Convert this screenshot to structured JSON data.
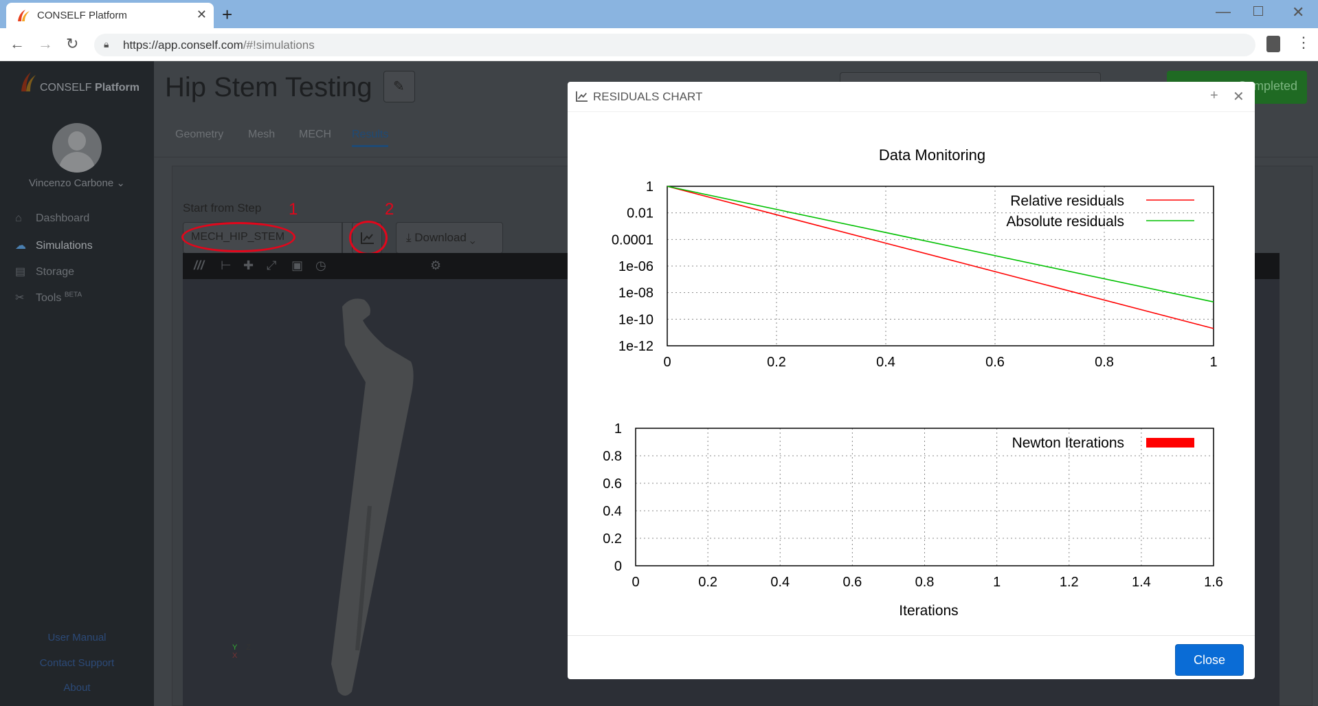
{
  "browser": {
    "tab_title": "CONSELF Platform",
    "url_host": "https://app.conself.com",
    "url_path": "/#!simulations"
  },
  "sidebar": {
    "logo_brand": "CONSELF",
    "logo_product": "Platform",
    "user_name": "Vincenzo Carbone ⌄",
    "items": [
      {
        "label": "Dashboard",
        "icon": "home-icon"
      },
      {
        "label": "Simulations",
        "icon": "cloud-icon"
      },
      {
        "label": "Storage",
        "icon": "storage-icon"
      },
      {
        "label": "Tools",
        "badge": "BETA",
        "icon": "tools-icon"
      }
    ],
    "footer_links": [
      "User Manual",
      "Contact Support",
      "About"
    ]
  },
  "main": {
    "title": "Hip Stem Testing",
    "status_button": "Completed",
    "tabs": [
      "Geometry",
      "Mesh",
      "MECH",
      "Results"
    ],
    "active_tab": "Results",
    "step_label": "Start from Step",
    "step_value": "MECH_HIP_STEM",
    "download_label": "Download",
    "annotations": [
      "1",
      "2"
    ],
    "axis_labels": {
      "x": "X",
      "y": "Y",
      "z": "Z"
    }
  },
  "modal": {
    "title": "RESIDUALS CHART",
    "close_label": "Close"
  },
  "chart_data": [
    {
      "type": "line",
      "title": "Data Monitoring",
      "xlabel": "",
      "ylabel": "",
      "y_scale": "log",
      "xlim": [
        0,
        1
      ],
      "ylim": [
        1e-12,
        1
      ],
      "x_ticks": [
        "0",
        "0.2",
        "0.4",
        "0.6",
        "0.8",
        "1"
      ],
      "y_ticks": [
        "1",
        "0.01",
        "0.0001",
        "1e-06",
        "1e-08",
        "1e-10",
        "1e-12"
      ],
      "grid": true,
      "legend": "top-right",
      "series": [
        {
          "name": "Relative residuals",
          "color": "#ff0000",
          "x": [
            0,
            1
          ],
          "y": [
            1,
            2e-11
          ]
        },
        {
          "name": "Absolute residuals",
          "color": "#00c000",
          "x": [
            0,
            1
          ],
          "y": [
            1,
            2e-09
          ]
        }
      ]
    },
    {
      "type": "bar",
      "title": "",
      "xlabel": "Iterations",
      "ylabel": "",
      "xlim": [
        0,
        1.6
      ],
      "ylim": [
        0,
        1
      ],
      "x_ticks": [
        "0",
        "0.2",
        "0.4",
        "0.6",
        "0.8",
        "1",
        "1.2",
        "1.4",
        "1.6"
      ],
      "y_ticks": [
        "0",
        "0.2",
        "0.4",
        "0.6",
        "0.8",
        "1"
      ],
      "grid": true,
      "legend": "top-right",
      "series": [
        {
          "name": "Newton Iterations",
          "color": "#ff0000",
          "x": [],
          "y": []
        }
      ]
    }
  ]
}
